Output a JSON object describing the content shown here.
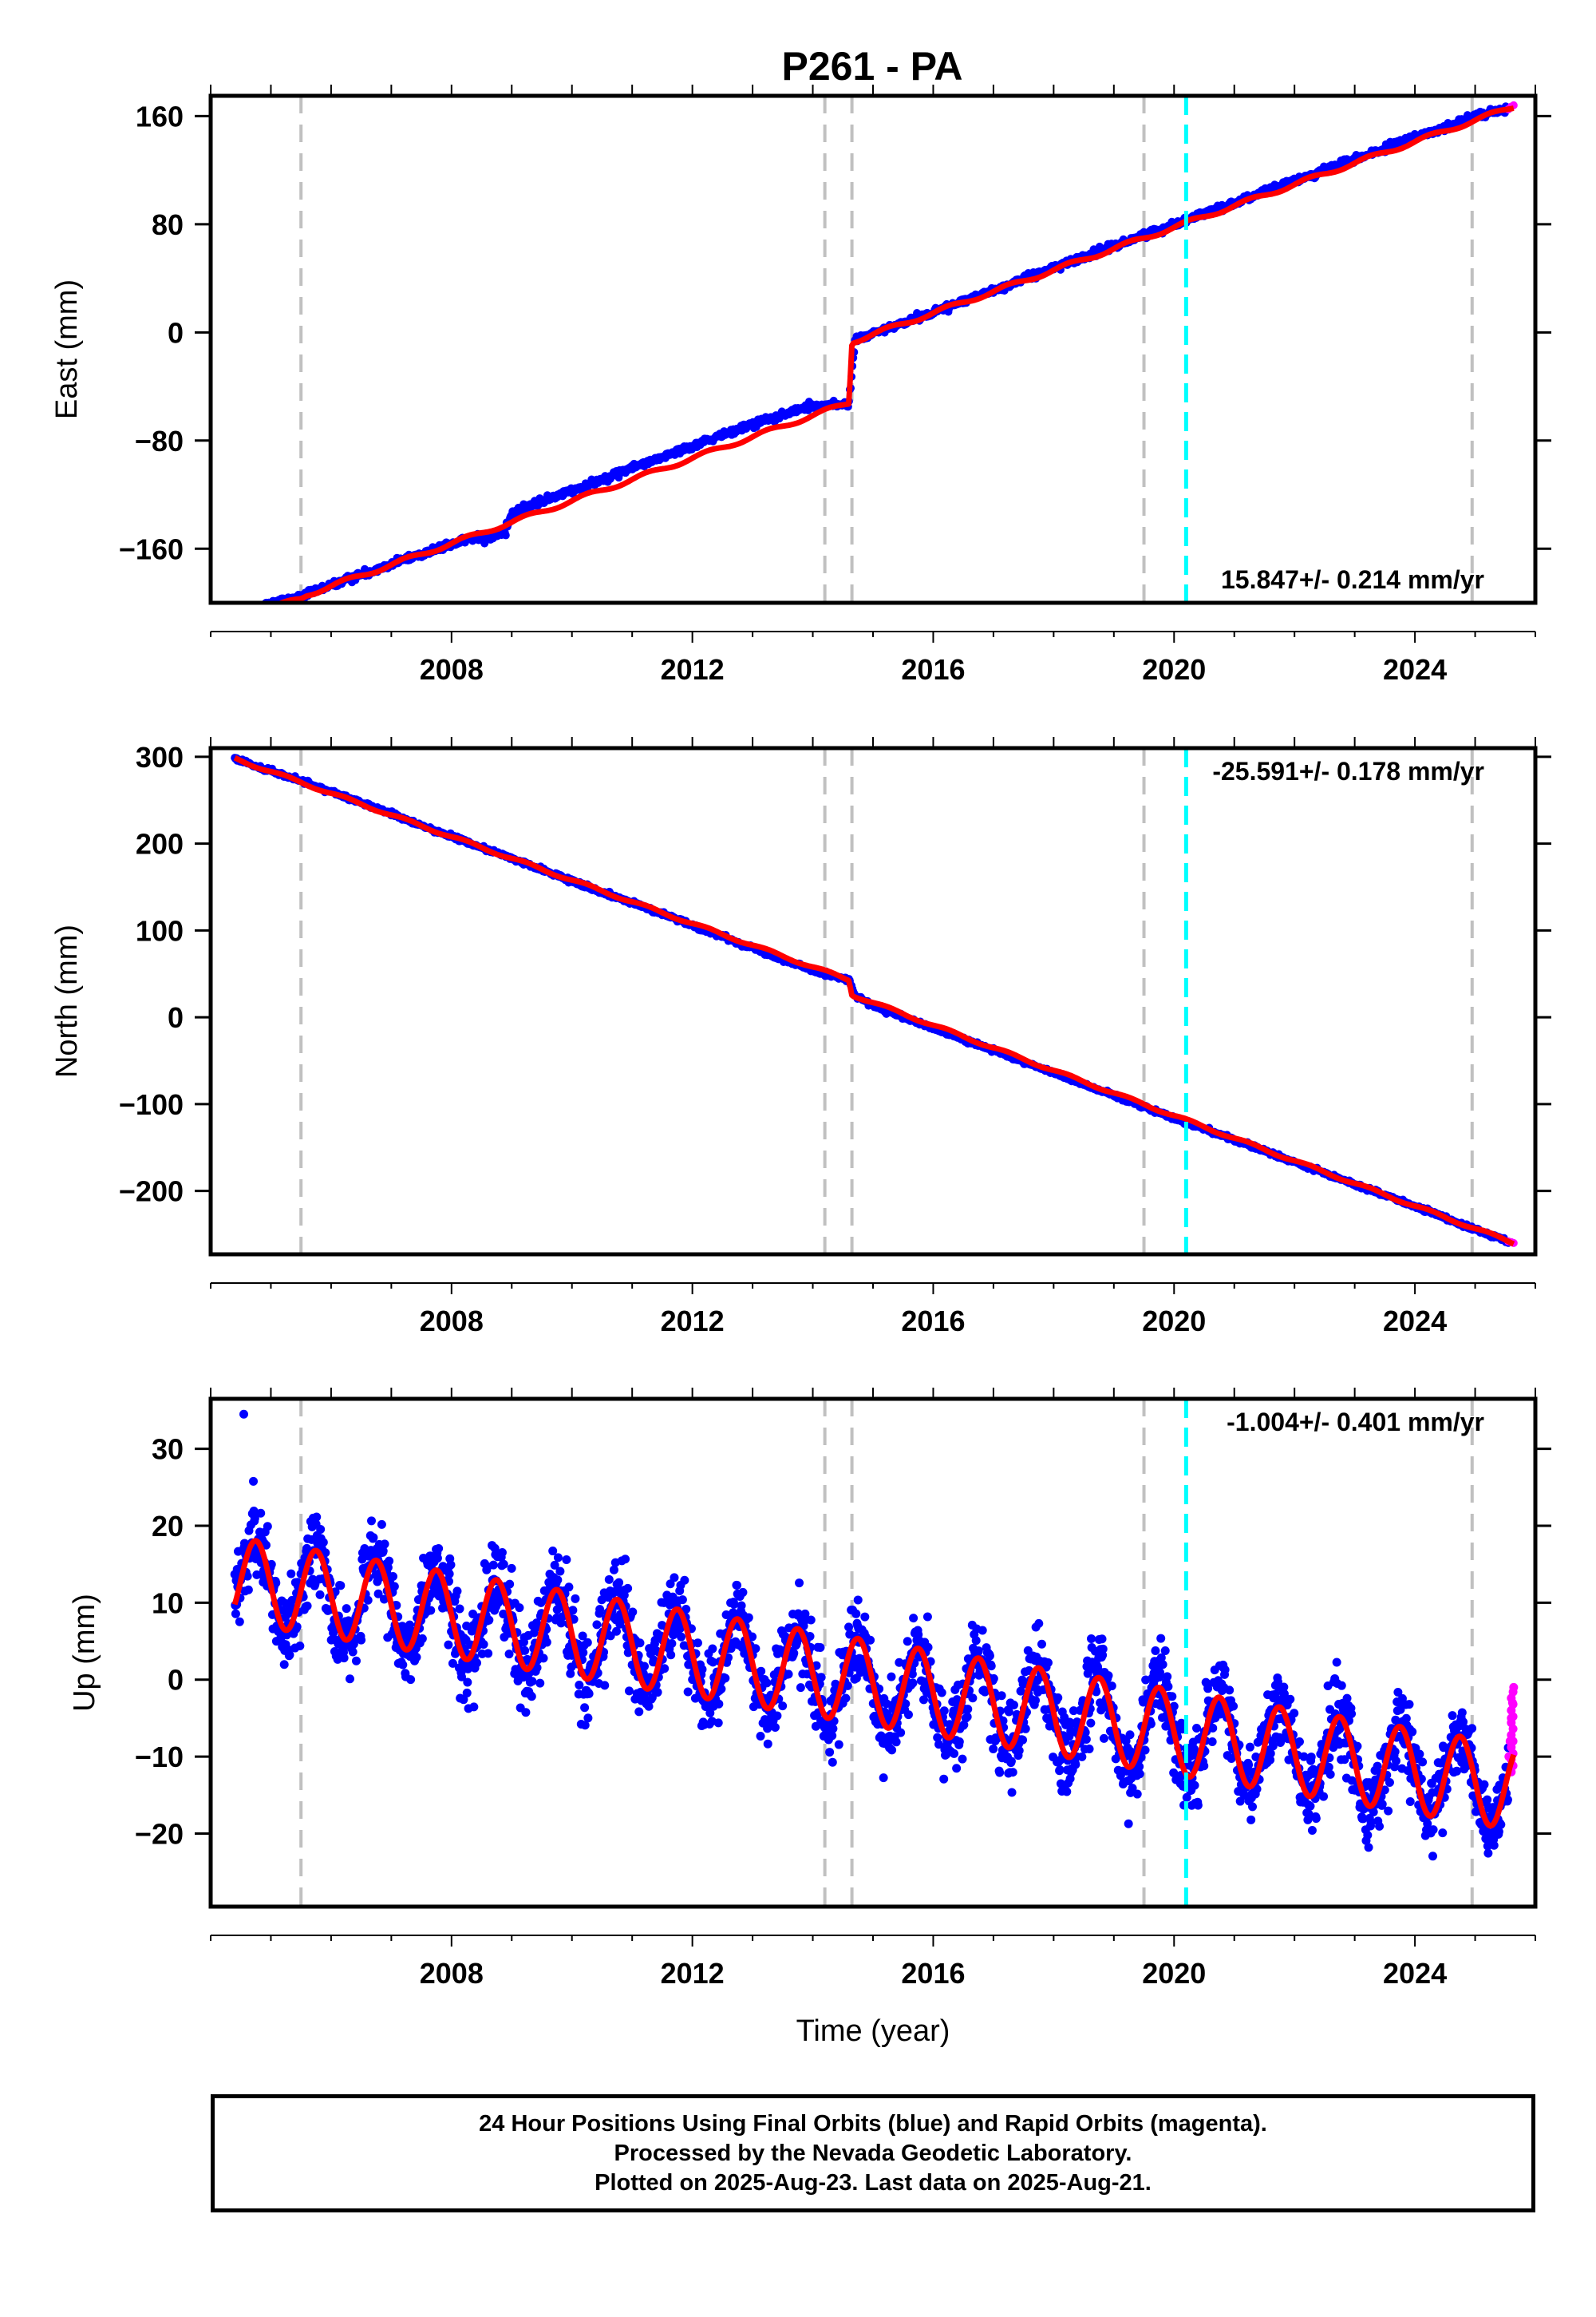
{
  "figure": {
    "title": "P261 - PA",
    "footer_lines": [
      "24 Hour Positions Using Final Orbits (blue) and Rapid Orbits (magenta).",
      "Processed by the Nevada Geodetic Laboratory.",
      "Plotted on 2025-Aug-23. Last data on 2025-Aug-21."
    ],
    "colors": {
      "final_orbits": "#0000ff",
      "rapid_orbits": "#ff00ff",
      "model_fit": "#ff0000",
      "equipment_change_lines": "#c0c0c0",
      "earthquake_line": "#00ffff"
    }
  },
  "chart_data": [
    {
      "type": "scatter",
      "panel": "east",
      "ylabel": "East (mm)",
      "xlabel": "",
      "xlim": [
        2004.0,
        2026.0
      ],
      "ylim": [
        -200,
        175
      ],
      "xticks": [
        2008,
        2012,
        2016,
        2020,
        2024
      ],
      "yticks": [
        -160,
        -80,
        0,
        80,
        160
      ],
      "ytick_labels": [
        "−160",
        "−80",
        "0",
        "80",
        "160"
      ],
      "rate_label": "15.847+/- 0.214 mm/yr",
      "rate_position": "bottom-right",
      "grey_dashed_lines_x": [
        2005.5,
        2014.2,
        2014.65,
        2019.5,
        2024.95
      ],
      "cyan_dashed_line_x": 2020.2,
      "series": [
        {
          "name": "final orbits (blue)",
          "x": [
            2004.4,
            2005.0,
            2005.5,
            2006.0,
            2007.0,
            2008.0,
            2008.9,
            2009.0,
            2010.0,
            2011.0,
            2012.0,
            2013.0,
            2014.0,
            2014.6,
            2014.7,
            2015.0,
            2016.0,
            2017.0,
            2018.0,
            2019.0,
            2020.0,
            2021.0,
            2022.0,
            2023.0,
            2024.0,
            2025.0,
            2025.55
          ],
          "y": [
            -212,
            -200,
            -196,
            -187,
            -171,
            -157,
            -144,
            -133,
            -117,
            -100,
            -84,
            -68,
            -54,
            -53,
            -6,
            -1,
            15,
            31,
            48,
            64,
            80,
            96,
            112,
            128,
            144,
            160,
            165
          ]
        },
        {
          "name": "rapid orbits (magenta)",
          "x": [
            2025.55,
            2025.6,
            2025.64
          ],
          "y": [
            165,
            167,
            168
          ]
        }
      ],
      "model": {
        "x": [
          2004.4,
          2005.5,
          2005.6,
          2014.6,
          2014.65,
          2025.64
        ],
        "y": [
          -212,
          -197,
          -194,
          -52,
          -7,
          167
        ]
      }
    },
    {
      "type": "scatter",
      "panel": "north",
      "ylabel": "North (mm)",
      "xlabel": "",
      "xlim": [
        2004.0,
        2026.0
      ],
      "ylim": [
        -273,
        310
      ],
      "xticks": [
        2008,
        2012,
        2016,
        2020,
        2024
      ],
      "yticks": [
        -200,
        -100,
        0,
        100,
        200,
        300
      ],
      "ytick_labels": [
        "−200",
        "−100",
        "0",
        "100",
        "200",
        "300"
      ],
      "rate_label": "-25.591+/- 0.178 mm/yr",
      "rate_position": "top-right",
      "grey_dashed_lines_x": [
        2005.5,
        2014.2,
        2014.65,
        2019.5,
        2024.95
      ],
      "cyan_dashed_line_x": 2020.2,
      "series": [
        {
          "name": "final orbits (blue)",
          "x": [
            2004.4,
            2005.5,
            2006.0,
            2007.0,
            2008.0,
            2009.0,
            2010.0,
            2011.0,
            2012.0,
            2013.0,
            2014.0,
            2014.6,
            2014.7,
            2015.0,
            2016.0,
            2017.0,
            2018.0,
            2019.0,
            2020.0,
            2021.0,
            2022.0,
            2023.0,
            2024.0,
            2025.0,
            2025.55
          ],
          "y": [
            298,
            272,
            260,
            234,
            208,
            183,
            157,
            132,
            106,
            80,
            54,
            43,
            25,
            13,
            -13,
            -38,
            -64,
            -90,
            -116,
            -141,
            -167,
            -192,
            -218,
            -244,
            -258
          ]
        },
        {
          "name": "rapid orbits (magenta)",
          "x": [
            2025.55,
            2025.6,
            2025.64
          ],
          "y": [
            -258,
            -259,
            -260
          ]
        }
      ],
      "model": {
        "x": [
          2004.4,
          2014.6,
          2014.65,
          2025.64
        ],
        "y": [
          298,
          43,
          26,
          -260
        ]
      }
    },
    {
      "type": "scatter",
      "panel": "up",
      "ylabel": "Up (mm)",
      "xlabel": "Time (year)",
      "xlim": [
        2004.0,
        2026.0
      ],
      "ylim": [
        -29.5,
        36.5
      ],
      "xticks": [
        2008,
        2012,
        2016,
        2020,
        2024
      ],
      "yticks": [
        -20,
        -10,
        0,
        10,
        20,
        30
      ],
      "ytick_labels": [
        "−20",
        "−10",
        "0",
        "10",
        "20",
        "30"
      ],
      "rate_label": "-1.004+/- 0.401 mm/yr",
      "rate_position": "top-right",
      "grey_dashed_lines_x": [
        2005.5,
        2014.2,
        2014.65,
        2019.5,
        2024.95
      ],
      "cyan_dashed_line_x": 2020.2,
      "series": [
        {
          "name": "final orbits (blue)",
          "x": [
            2004.4,
            2025.55
          ],
          "y": [
            13,
            -8
          ],
          "noise_mm": 4.5,
          "seasonal_amplitude_mm": 5.5
        },
        {
          "name": "rapid orbits (magenta)",
          "x": [
            2025.56,
            2025.58,
            2025.6,
            2025.62,
            2025.64
          ],
          "y": [
            -10,
            -8,
            -5,
            -3,
            -1
          ]
        }
      ],
      "model": {
        "trend_start": [
          2004.4,
          13
        ],
        "trend_end": [
          2025.64,
          -14
        ],
        "seasonal_amplitude_mm": 5.5,
        "seasonal_peak_phase_yr": 0.75
      }
    }
  ]
}
